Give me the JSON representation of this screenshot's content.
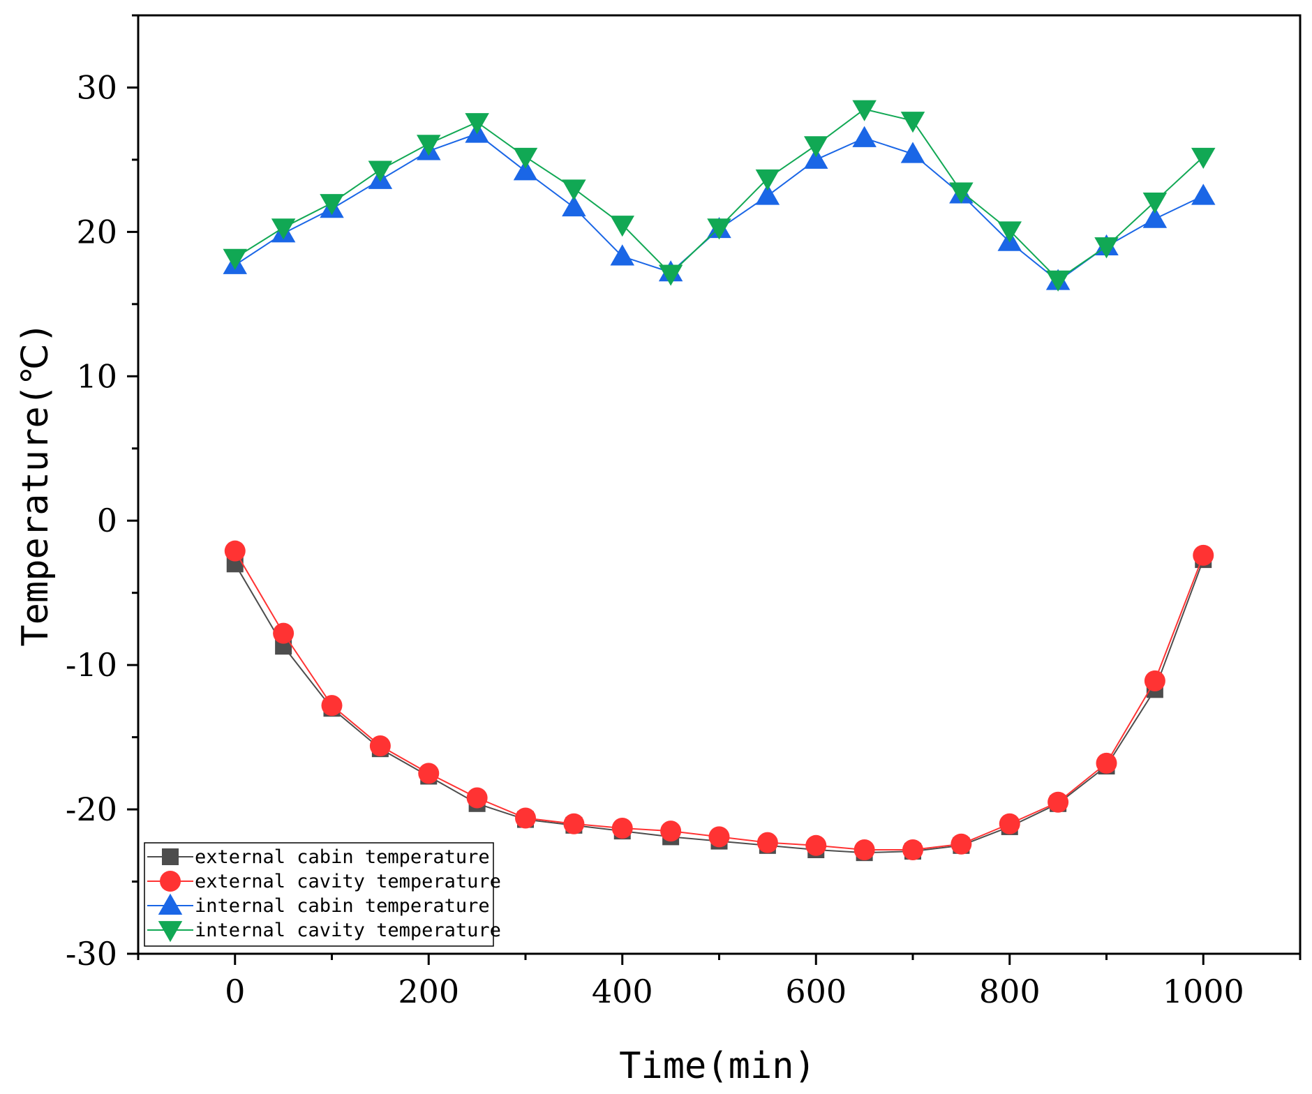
{
  "chart_data": {
    "type": "line",
    "title": "",
    "xlabel": "Time(min)",
    "ylabel": "Temperature(℃)",
    "xlim": [
      -100,
      1100
    ],
    "ylim": [
      -30,
      35
    ],
    "xticks": [
      0,
      200,
      400,
      600,
      800,
      1000
    ],
    "yticks": [
      -30,
      -20,
      -10,
      0,
      10,
      20,
      30
    ],
    "x": [
      0,
      50,
      100,
      150,
      200,
      250,
      300,
      350,
      400,
      450,
      500,
      550,
      600,
      650,
      700,
      750,
      800,
      850,
      900,
      950,
      1000
    ],
    "grid": false,
    "legend_position": "bottom-left",
    "series": [
      {
        "name": "external cabin temperature",
        "marker": "square",
        "color": "#4d4d4d",
        "values": [
          -3.0,
          -8.7,
          -13.0,
          -15.8,
          -17.7,
          -19.6,
          -20.7,
          -21.1,
          -21.5,
          -21.9,
          -22.2,
          -22.5,
          -22.8,
          -23.0,
          -22.9,
          -22.5,
          -21.2,
          -19.6,
          -17.0,
          -11.7,
          -2.7
        ]
      },
      {
        "name": "external cavity temperature",
        "marker": "circle",
        "color": "#ff3333",
        "values": [
          -2.1,
          -7.8,
          -12.8,
          -15.6,
          -17.5,
          -19.2,
          -20.6,
          -21.0,
          -21.3,
          -21.5,
          -21.9,
          -22.3,
          -22.5,
          -22.8,
          -22.8,
          -22.4,
          -21.0,
          -19.5,
          -16.8,
          -11.1,
          -2.4
        ]
      },
      {
        "name": "internal cabin temperature",
        "marker": "triangle-up",
        "color": "#1a66e6",
        "values": [
          17.7,
          19.9,
          21.6,
          23.6,
          25.6,
          26.8,
          24.2,
          21.7,
          18.3,
          17.2,
          20.2,
          22.5,
          25.0,
          26.5,
          25.4,
          22.6,
          19.3,
          16.6,
          19.0,
          20.9,
          22.5
        ]
      },
      {
        "name": "internal cavity temperature",
        "marker": "triangle-down",
        "color": "#11a854",
        "values": [
          18.2,
          20.3,
          22.0,
          24.3,
          26.1,
          27.6,
          25.2,
          23.0,
          20.5,
          17.1,
          20.3,
          23.7,
          26.0,
          28.5,
          27.7,
          22.8,
          20.1,
          16.7,
          19.0,
          22.1,
          25.2
        ]
      }
    ]
  }
}
